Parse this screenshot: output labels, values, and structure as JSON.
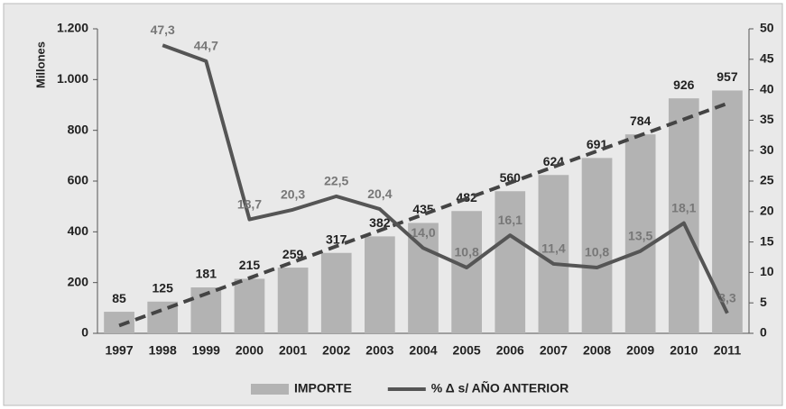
{
  "chart_data": {
    "type": "bar-line",
    "y_label": "Millones",
    "categories": [
      "1997",
      "1998",
      "1999",
      "2000",
      "2001",
      "2002",
      "2003",
      "2004",
      "2005",
      "2006",
      "2007",
      "2008",
      "2009",
      "2010",
      "2011"
    ],
    "series": [
      {
        "name": "IMPORTE",
        "type": "bar",
        "color": "#b3b3b3",
        "values": [
          85,
          125,
          181,
          215,
          259,
          317,
          382,
          435,
          482,
          560,
          624,
          691,
          784,
          926,
          957
        ]
      },
      {
        "name": "% Δ s/ AÑO ANTERIOR",
        "type": "line",
        "axis": "y2",
        "color": "#555555",
        "values": [
          null,
          47.3,
          44.7,
          18.7,
          20.3,
          22.5,
          20.4,
          14.0,
          10.8,
          16.1,
          11.4,
          10.8,
          13.5,
          18.1,
          3.3
        ],
        "value_labels": [
          null,
          "47,3",
          "44,7",
          "18,7",
          "20,3",
          "22,5",
          "20,4",
          "14,0",
          "10,8",
          "16,1",
          "11,4",
          "10,8",
          "13,5",
          "18,1",
          "3,3"
        ]
      }
    ],
    "trendline": {
      "series": 0,
      "color": "#444444",
      "dashed": true
    },
    "ylim": [
      0,
      1200
    ],
    "yticks": [
      0,
      200,
      400,
      600,
      800,
      {
        "value": 1000,
        "label": "1.000"
      },
      {
        "value": 1200,
        "label": "1.200"
      }
    ],
    "y2lim": [
      0,
      50
    ],
    "y2ticks": [
      0,
      5,
      10,
      15,
      20,
      25,
      30,
      35,
      40,
      45,
      50
    ],
    "grid": false,
    "legend": "bottom"
  }
}
